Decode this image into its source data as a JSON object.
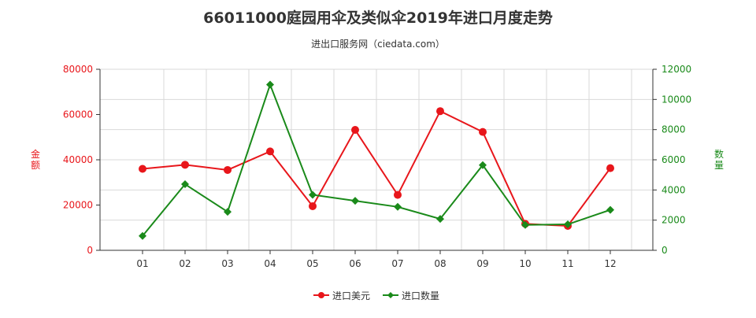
{
  "chart_data": {
    "type": "line",
    "title": "66011000庭园用伞及类似伞2019年进口月度走势",
    "subtitle": "进出口服务网（ciedata.com）",
    "categories": [
      "01",
      "02",
      "03",
      "04",
      "05",
      "06",
      "07",
      "08",
      "09",
      "10",
      "11",
      "12"
    ],
    "y_left": {
      "label": "金额",
      "ylim": [
        0,
        80000
      ],
      "ticks": [
        0,
        20000,
        40000,
        60000,
        80000
      ],
      "color": "#e8161b"
    },
    "y_right": {
      "label": "数量",
      "ylim": [
        0,
        12000
      ],
      "ticks": [
        0,
        2000,
        4000,
        6000,
        8000,
        10000,
        12000
      ],
      "color": "#1a8a1a"
    },
    "series": [
      {
        "name": "进口美元",
        "axis": "left",
        "color": "#e8161b",
        "marker": "circle",
        "values": [
          36000,
          37800,
          35500,
          43700,
          19500,
          53200,
          24500,
          61500,
          52300,
          11700,
          10800,
          36300
        ]
      },
      {
        "name": "进口数量",
        "axis": "right",
        "color": "#1a8a1a",
        "marker": "diamond",
        "values": [
          950,
          4380,
          2550,
          10980,
          3680,
          3280,
          2880,
          2080,
          5650,
          1680,
          1720,
          2680
        ]
      }
    ],
    "grid": true,
    "legend": "bottom"
  }
}
